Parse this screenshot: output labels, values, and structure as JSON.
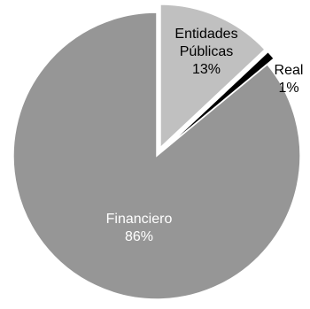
{
  "chart_data": {
    "type": "pie",
    "categories": [
      "Entidades Públicas",
      "Real",
      "Financiero"
    ],
    "values": [
      13,
      1,
      86
    ],
    "value_labels": [
      "13%",
      "1%",
      "86%"
    ],
    "label_lines": [
      [
        "Entidades",
        "Públicas",
        "13%"
      ],
      [
        "Real",
        "1%"
      ],
      [
        "Financiero",
        "86%"
      ]
    ],
    "colors": [
      "#c0c0c0",
      "#000000",
      "#969696"
    ],
    "label_colors": [
      "#000000",
      "#000000",
      "#ffffff"
    ],
    "exploded": [
      true,
      true,
      false
    ],
    "legend": "none",
    "title": ""
  }
}
